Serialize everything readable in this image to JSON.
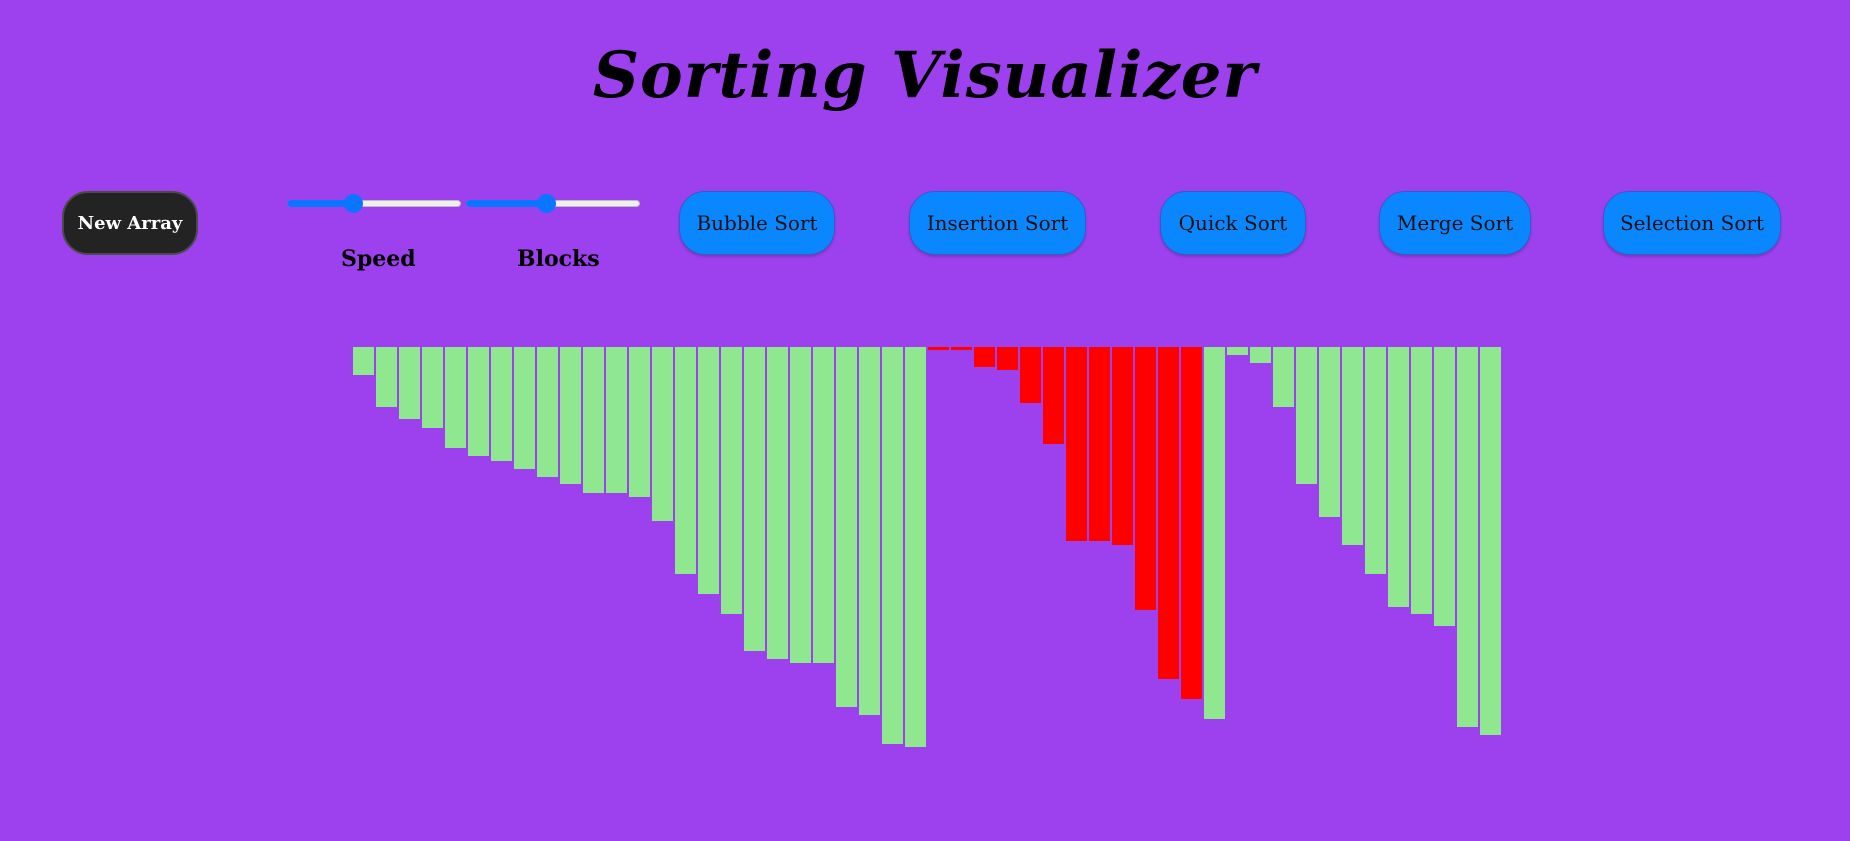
{
  "title": "Sorting Visualizer",
  "controls": {
    "new_array_label": "New Array",
    "speed_label": "Speed",
    "blocks_label": "Blocks",
    "speed_level": 0.38,
    "blocks_level": 0.46
  },
  "sort_buttons": {
    "bubble": "Bubble Sort",
    "insertion": "Insertion Sort",
    "quick": "Quick Sort",
    "merge": "Merge Sort",
    "selection": "Selection Sort"
  },
  "colors": {
    "background": "#9d40ee",
    "bar_default": "#8fe88f",
    "bar_active": "#ff0000",
    "button": "#0a86ff"
  },
  "bars": {
    "values": [
      28,
      60,
      72,
      81,
      101,
      109,
      114,
      122,
      130,
      137,
      146,
      146,
      150,
      174,
      227,
      247,
      267,
      304,
      312,
      316,
      316,
      360,
      368,
      397,
      400,
      3,
      3,
      20,
      23,
      56,
      97,
      194,
      194,
      198,
      263,
      332,
      352,
      372,
      8,
      16,
      60,
      137,
      170,
      198,
      227,
      260,
      267,
      279,
      380,
      388
    ],
    "states": [
      "sorted",
      "sorted",
      "sorted",
      "sorted",
      "sorted",
      "sorted",
      "sorted",
      "sorted",
      "sorted",
      "sorted",
      "sorted",
      "sorted",
      "sorted",
      "sorted",
      "sorted",
      "sorted",
      "sorted",
      "sorted",
      "sorted",
      "sorted",
      "sorted",
      "sorted",
      "sorted",
      "sorted",
      "sorted",
      "active",
      "active",
      "active",
      "active",
      "active",
      "active",
      "active",
      "active",
      "active",
      "active",
      "active",
      "active",
      "sorted",
      "sorted",
      "sorted",
      "sorted",
      "sorted",
      "sorted",
      "sorted",
      "sorted",
      "sorted",
      "sorted",
      "sorted",
      "sorted",
      "sorted"
    ]
  }
}
